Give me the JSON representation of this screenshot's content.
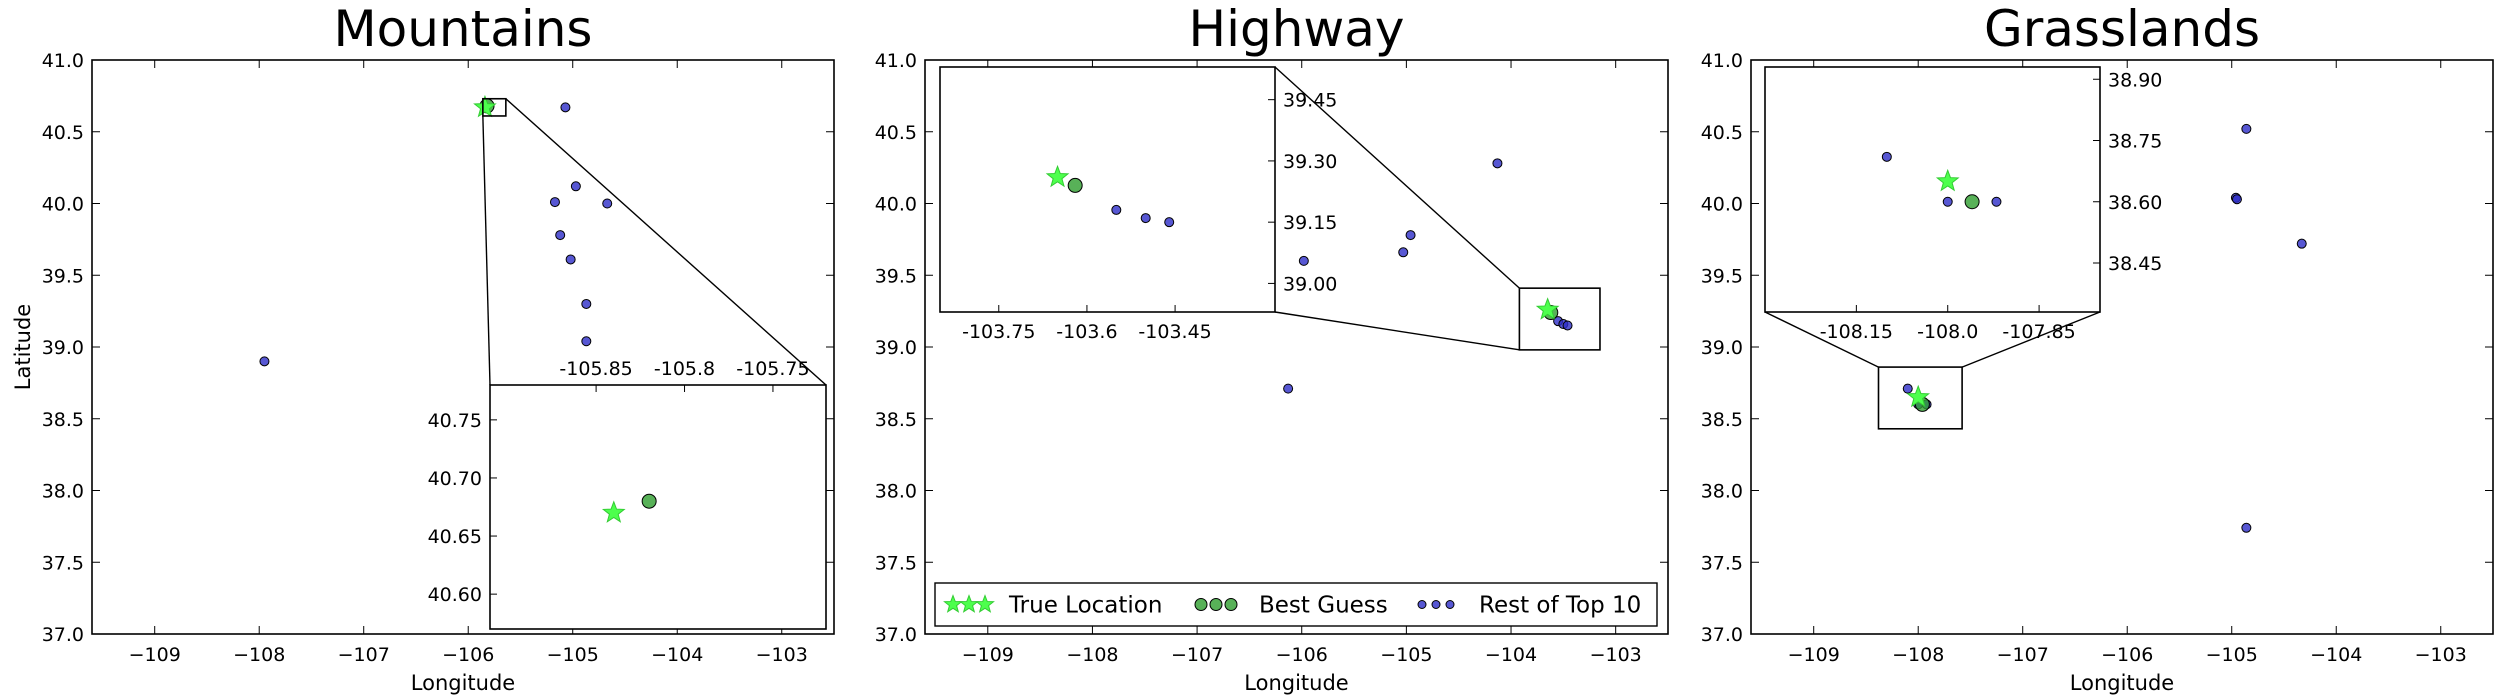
{
  "colors": {
    "true_location": "#4dff4d",
    "best_guess": "#2e9e2e",
    "rest": "#2d2dc8",
    "frame": "#000000"
  },
  "legend": {
    "true_label": "True Location",
    "best_label": "Best Guess",
    "rest_label": "Rest of Top 10"
  },
  "chart_data": [
    {
      "type": "scatter",
      "title": "Mountains",
      "xlabel": "Longitude",
      "ylabel": "Latitude",
      "xlim": [
        -109.6,
        -102.5
      ],
      "ylim": [
        37.0,
        41.0
      ],
      "xticks": [
        -109,
        -108,
        -107,
        -106,
        -105,
        -104,
        -103
      ],
      "xtick_labels": [
        "−109",
        "−108",
        "−107",
        "−106",
        "−105",
        "−104",
        "−103"
      ],
      "yticks": [
        37.0,
        37.5,
        38.0,
        38.5,
        39.0,
        39.5,
        40.0,
        40.5,
        41.0
      ],
      "ytick_labels": [
        "37.0",
        "37.5",
        "38.0",
        "38.5",
        "39.0",
        "39.5",
        "40.0",
        "40.5",
        "41.0"
      ],
      "true_location": [
        -105.84,
        40.67
      ],
      "best_guess": [
        -105.82,
        40.68
      ],
      "rest": [
        [
          -107.95,
          38.9
        ],
        [
          -105.07,
          40.67
        ],
        [
          -104.97,
          40.12
        ],
        [
          -104.67,
          40.0
        ],
        [
          -105.17,
          40.01
        ],
        [
          -105.12,
          39.78
        ],
        [
          -105.02,
          39.61
        ],
        [
          -104.87,
          39.3
        ],
        [
          -104.87,
          39.04
        ]
      ],
      "inset": {
        "xlim": [
          -105.91,
          -105.72
        ],
        "ylim": [
          40.57,
          40.78
        ],
        "xticks": [
          -105.85,
          -105.8,
          -105.75
        ],
        "xtick_labels": [
          "-105.85",
          "-105.8",
          "-105.75"
        ],
        "xtick_position": "top",
        "yticks": [
          40.6,
          40.65,
          40.7,
          40.75
        ],
        "ytick_labels": [
          "40.60",
          "40.65",
          "40.70",
          "40.75"
        ],
        "ytick_position": "left",
        "zoom_box": {
          "xlim": [
            -105.86,
            -105.64
          ],
          "ylim": [
            40.61,
            40.73
          ]
        }
      }
    },
    {
      "type": "scatter",
      "title": "Highway",
      "xlabel": "Longitude",
      "ylabel": "",
      "xlim": [
        -109.6,
        -102.5
      ],
      "ylim": [
        37.0,
        41.0
      ],
      "xticks": [
        -109,
        -108,
        -107,
        -106,
        -105,
        -104,
        -103
      ],
      "xtick_labels": [
        "−109",
        "−108",
        "−107",
        "−106",
        "−105",
        "−104",
        "−103"
      ],
      "yticks": [
        37.0,
        37.5,
        38.0,
        38.5,
        39.0,
        39.5,
        40.0,
        40.5,
        41.0
      ],
      "ytick_labels": [
        "37.0",
        "37.5",
        "38.0",
        "38.5",
        "39.0",
        "39.5",
        "40.0",
        "40.5",
        "41.0"
      ],
      "true_location": [
        -103.65,
        39.26
      ],
      "best_guess": [
        -103.62,
        39.24
      ],
      "rest": [
        [
          -104.13,
          40.28
        ],
        [
          -104.96,
          39.78
        ],
        [
          -105.03,
          39.66
        ],
        [
          -105.98,
          39.6
        ],
        [
          -106.13,
          38.71
        ],
        [
          -103.55,
          39.18
        ],
        [
          -103.5,
          39.16
        ],
        [
          -103.46,
          39.15
        ]
      ],
      "legend_position": "lower-center",
      "inset": {
        "xlim": [
          -103.85,
          -103.28
        ],
        "ylim": [
          38.93,
          39.53
        ],
        "xticks": [
          -103.75,
          -103.6,
          -103.45
        ],
        "xtick_labels": [
          "-103.75",
          "-103.6",
          "-103.45"
        ],
        "xtick_position": "bottom",
        "yticks": [
          39.0,
          39.15,
          39.3,
          39.45
        ],
        "ytick_labels": [
          "39.00",
          "39.15",
          "39.30",
          "39.45"
        ],
        "ytick_position": "right",
        "zoom_box": {
          "xlim": [
            -103.92,
            -103.15
          ],
          "ylim": [
            38.98,
            39.41
          ]
        }
      }
    },
    {
      "type": "scatter",
      "title": "Grasslands",
      "xlabel": "Longitude",
      "ylabel": "",
      "xlim": [
        -109.6,
        -102.5
      ],
      "ylim": [
        37.0,
        41.0
      ],
      "xticks": [
        -109,
        -108,
        -107,
        -106,
        -105,
        -104,
        -103
      ],
      "xtick_labels": [
        "−109",
        "−108",
        "−107",
        "−106",
        "−105",
        "−104",
        "−103"
      ],
      "yticks": [
        37.0,
        37.5,
        38.0,
        38.5,
        39.0,
        39.5,
        40.0,
        40.5,
        41.0
      ],
      "ytick_labels": [
        "37.0",
        "37.5",
        "38.0",
        "38.5",
        "39.0",
        "39.5",
        "40.0",
        "40.5",
        "41.0"
      ],
      "true_location": [
        -108.0,
        38.65
      ],
      "best_guess": [
        -107.96,
        38.6
      ],
      "rest": [
        [
          -104.86,
          40.52
        ],
        [
          -104.96,
          40.04
        ],
        [
          -104.95,
          40.03
        ],
        [
          -104.33,
          39.72
        ],
        [
          -104.86,
          37.74
        ],
        [
          -108.1,
          38.71
        ],
        [
          -108.0,
          38.6
        ],
        [
          -107.92,
          38.6
        ]
      ],
      "inset": {
        "xlim": [
          -108.3,
          -107.75
        ],
        "ylim": [
          38.33,
          38.93
        ],
        "xticks": [
          -108.15,
          -108.0,
          -107.85
        ],
        "xtick_labels": [
          "-108.15",
          "-108.0",
          "-107.85"
        ],
        "xtick_position": "bottom",
        "yticks": [
          38.45,
          38.6,
          38.75,
          38.9
        ],
        "ytick_labels": [
          "38.45",
          "38.60",
          "38.75",
          "38.90"
        ],
        "ytick_position": "right",
        "zoom_box": {
          "xlim": [
            -108.38,
            -107.58
          ],
          "ylim": [
            38.43,
            38.86
          ]
        }
      }
    }
  ]
}
